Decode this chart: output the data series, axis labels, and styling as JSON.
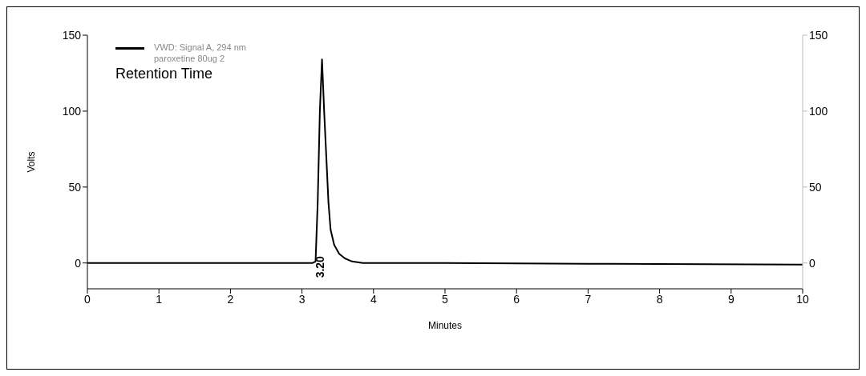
{
  "chart_data": {
    "type": "line",
    "xlabel": "Minutes",
    "ylabel": "Volts",
    "x": [
      0,
      1,
      2,
      3,
      3.15,
      3.19,
      3.22,
      3.25,
      3.28,
      3.31,
      3.34,
      3.37,
      3.4,
      3.45,
      3.52,
      3.6,
      3.7,
      3.85,
      5,
      7,
      10
    ],
    "series": [
      {
        "name": "VWD: Signal A, 294 nm paroxetine 80ug 2",
        "color": "#000000",
        "values": [
          0,
          0,
          0,
          0,
          0,
          1,
          40,
          100,
          134,
          100,
          70,
          40,
          22,
          12,
          6,
          3,
          1,
          0,
          0,
          -0.5,
          -1
        ]
      }
    ],
    "annotations": [
      "Retention Time",
      {
        "text": "3.20",
        "x": 3.2,
        "y": 0
      }
    ],
    "xlim": [
      0,
      10
    ],
    "xticks": [
      0,
      1,
      2,
      3,
      4,
      5,
      6,
      7,
      8,
      9,
      10
    ],
    "ylim": [
      -17,
      150
    ],
    "yticks": [
      0,
      50,
      100,
      150
    ],
    "y2lim": [
      -17,
      150
    ],
    "y2ticks": [
      0,
      50,
      100,
      150
    ],
    "legend": "top left",
    "marker": "none",
    "line_style": "solid"
  }
}
